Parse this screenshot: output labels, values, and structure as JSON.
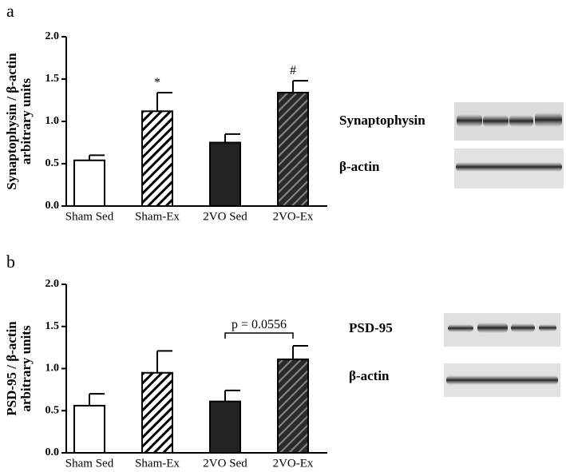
{
  "chart_data": [
    {
      "type": "bar",
      "panel": "a",
      "ylabel": [
        "Synaptophysin / β-actin",
        "arbitrary units"
      ],
      "categories": [
        "Sham Sed",
        "Sham-Ex",
        "2VO Sed",
        "2VO-Ex"
      ],
      "values": [
        0.54,
        1.12,
        0.75,
        1.34
      ],
      "errors": [
        0.06,
        0.22,
        0.1,
        0.14
      ],
      "colors": [
        "#ffffff",
        "#ffffff",
        "#222222",
        "#333333"
      ],
      "hatched": [
        false,
        true,
        false,
        true
      ],
      "ylim": [
        0,
        2
      ],
      "yticks": [
        {
          "value": 0,
          "label": "0.0"
        },
        0.5,
        {
          "value": 1,
          "label": "1.0"
        },
        1.5,
        {
          "value": 2,
          "label": "2.0"
        }
      ],
      "annotations": [
        {
          "text": "*",
          "x": "Sham-Ex"
        },
        {
          "text": "#",
          "x": "2VO-Ex"
        }
      ],
      "blot_labels": [
        "Synaptophysin",
        "β-actin"
      ]
    },
    {
      "type": "bar",
      "panel": "b",
      "ylabel": [
        "PSD-95 / β-actin",
        "arbitrary units"
      ],
      "categories": [
        "Sham Sed",
        "Sham-Ex",
        "2VO Sed",
        "2VO-Ex"
      ],
      "values": [
        0.56,
        0.95,
        0.61,
        1.11
      ],
      "errors": [
        0.14,
        0.26,
        0.13,
        0.16
      ],
      "colors": [
        "#ffffff",
        "#ffffff",
        "#222222",
        "#333333"
      ],
      "hatched": [
        false,
        true,
        false,
        true
      ],
      "ylim": [
        0,
        2
      ],
      "yticks": [
        {
          "value": 0,
          "label": "0.0"
        },
        0.5,
        {
          "value": 1,
          "label": "1.0"
        },
        1.5,
        {
          "value": 2,
          "label": "2.0"
        }
      ],
      "brackets": [
        {
          "text": "p = 0.0556",
          "from": "2VO Sed",
          "to": "2VO-Ex"
        }
      ],
      "blot_labels": [
        "PSD-95",
        "β-actin"
      ]
    }
  ]
}
